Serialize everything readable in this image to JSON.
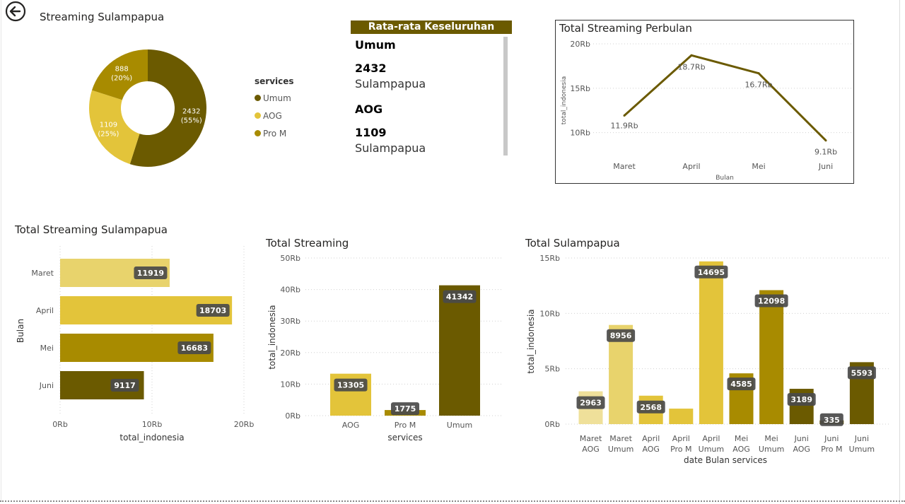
{
  "colors": {
    "umum": "#6b5a00",
    "aog": "#e3c43a",
    "pro_m": "#a88b00",
    "light": "#e8d36c",
    "card_header": "#6b5a00",
    "line": "#6b5a00",
    "label_bg": "#4a4a4a"
  },
  "icons": {
    "back": "back-arrow-icon"
  },
  "donut": {
    "title": "Streaming Sulampapua",
    "legend_title": "services",
    "legend": [
      "Umum",
      "AOG",
      "Pro M"
    ]
  },
  "card": {
    "header": "Rata-rata Keseluruhan",
    "items": [
      {
        "service": "Umum",
        "value": "2432",
        "region": "Sulampapua"
      },
      {
        "service": "AOG",
        "value": "1109",
        "region": "Sulampapua"
      }
    ]
  },
  "chart_data": [
    {
      "id": "donut",
      "type": "pie",
      "title": "Streaming Sulampapua",
      "legend_title": "services",
      "legend_position": "right",
      "slices": [
        {
          "label": "Umum",
          "value": 2432,
          "display_value": "2432",
          "percent": "(55%)",
          "color": "#6b5a00"
        },
        {
          "label": "AOG",
          "value": 1109,
          "display_value": "1109",
          "percent": "(25%)",
          "color": "#e3c43a"
        },
        {
          "label": "Pro M",
          "value": 888,
          "display_value": "888",
          "percent": "(20%)",
          "color": "#a88b00"
        }
      ]
    },
    {
      "id": "monthly_line",
      "type": "line",
      "title": "Total Streaming Perbulan",
      "xlabel": "Bulan",
      "ylabel": "total_indonesia",
      "categories": [
        "Maret",
        "April",
        "Mei",
        "Juni"
      ],
      "values": [
        11919,
        18703,
        16683,
        9117
      ],
      "data_labels": [
        "11.9Rb",
        "18.7Rb",
        "16.7Rb",
        "9.1Rb"
      ],
      "yticks": [
        10000,
        15000,
        20000
      ],
      "ytick_labels": [
        "10Rb",
        "15Rb",
        "20Rb"
      ],
      "ylim": [
        8300,
        20000
      ],
      "grid": true
    },
    {
      "id": "month_bar",
      "type": "bar",
      "orientation": "horizontal",
      "title": "Total Streaming Sulampapua",
      "xlabel": "total_indonesia",
      "ylabel": "Bulan",
      "categories": [
        "Maret",
        "April",
        "Mei",
        "Juni"
      ],
      "values": [
        11919,
        18703,
        16683,
        9117
      ],
      "colors": [
        "#e8d36c",
        "#e3c43a",
        "#a88b00",
        "#6b5a00"
      ],
      "xticks": [
        0,
        10000,
        20000
      ],
      "xtick_labels": [
        "0Rb",
        "10Rb",
        "20Rb"
      ],
      "xlim": [
        0,
        20000
      ],
      "grid": true
    },
    {
      "id": "service_bar",
      "type": "bar",
      "title": "Total Streaming",
      "xlabel": "services",
      "ylabel": "total_indonesia",
      "categories": [
        "AOG",
        "Pro M",
        "Umum"
      ],
      "values": [
        13305,
        1775,
        41342
      ],
      "colors": [
        "#e3c43a",
        "#a88b00",
        "#6b5a00"
      ],
      "yticks": [
        0,
        10000,
        20000,
        30000,
        40000,
        50000
      ],
      "ytick_labels": [
        "0Rb",
        "10Rb",
        "20Rb",
        "30Rb",
        "40Rb",
        "50Rb"
      ],
      "ylim": [
        0,
        50000
      ],
      "grid": true
    },
    {
      "id": "month_service_bar",
      "type": "bar",
      "title": "Total Sulampapua",
      "xlabel": "date Bulan services",
      "ylabel": "total_indonesia",
      "categories": [
        [
          "Maret",
          "AOG"
        ],
        [
          "Maret",
          "Umum"
        ],
        [
          "April",
          "AOG"
        ],
        [
          "April",
          "Pro M"
        ],
        [
          "April",
          "Umum"
        ],
        [
          "Mei",
          "AOG"
        ],
        [
          "Mei",
          "Umum"
        ],
        [
          "Juni",
          "AOG"
        ],
        [
          "Juni",
          "Pro M"
        ],
        [
          "Juni",
          "Umum"
        ]
      ],
      "values": [
        2963,
        8956,
        2568,
        1400,
        14695,
        4585,
        12098,
        3189,
        335,
        5593
      ],
      "data_labels": [
        "2963",
        "8956",
        "2568",
        "",
        "14695",
        "4585",
        "12098",
        "3189",
        "335",
        "5593"
      ],
      "colors": [
        "#efe09a",
        "#e8d36c",
        "#e3c43a",
        "#e3c43a",
        "#e3c43a",
        "#a88b00",
        "#a88b00",
        "#6b5a00",
        "#6b5a00",
        "#6b5a00"
      ],
      "yticks": [
        0,
        5000,
        10000,
        15000
      ],
      "ytick_labels": [
        "0Rb",
        "5Rb",
        "10Rb",
        "15Rb"
      ],
      "ylim": [
        0,
        15000
      ],
      "grid": true
    }
  ]
}
